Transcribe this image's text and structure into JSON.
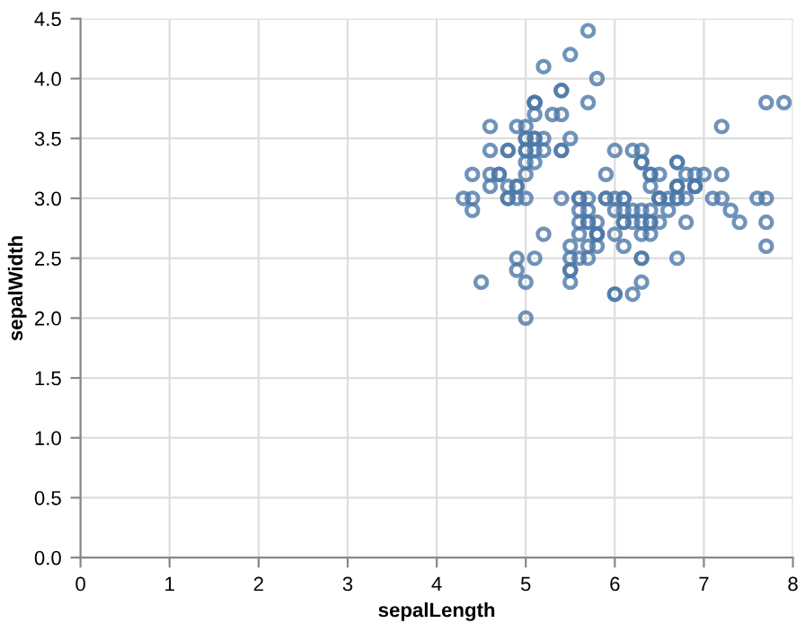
{
  "chart_data": {
    "type": "scatter",
    "xlabel": "sepalLength",
    "ylabel": "sepalWidth",
    "marker": "circle",
    "grid": true,
    "xlim": [
      0,
      8
    ],
    "xticks": [
      0,
      1,
      2,
      3,
      4,
      5,
      6,
      7,
      8
    ],
    "ylim": [
      0,
      4.5
    ],
    "yticks": [
      {
        "value": 0,
        "label": "0.0"
      },
      {
        "value": 0.5,
        "label": "0.5"
      },
      {
        "value": 1,
        "label": "1.0"
      },
      {
        "value": 1.5,
        "label": "1.5"
      },
      {
        "value": 2,
        "label": "2.0"
      },
      {
        "value": 2.5,
        "label": "2.5"
      },
      {
        "value": 3,
        "label": "3.0"
      },
      {
        "value": 3.5,
        "label": "3.5"
      },
      {
        "value": 4,
        "label": "4.0"
      },
      {
        "value": 4.5,
        "label": "4.5"
      }
    ],
    "series": [
      {
        "color": "#4c78a8",
        "x": [
          5.1,
          4.9,
          4.7,
          4.6,
          5.0,
          5.4,
          4.6,
          5.0,
          4.4,
          4.9,
          5.4,
          4.8,
          4.8,
          4.3,
          5.8,
          5.7,
          5.4,
          5.1,
          5.7,
          5.1,
          5.4,
          5.1,
          4.6,
          5.1,
          4.8,
          5.0,
          5.0,
          5.2,
          5.2,
          4.7,
          4.8,
          5.4,
          5.2,
          5.5,
          4.9,
          5.0,
          5.5,
          4.9,
          4.4,
          5.1,
          5.0,
          4.5,
          4.4,
          5.0,
          5.1,
          4.8,
          5.1,
          4.6,
          5.3,
          5.0,
          7.0,
          6.4,
          6.9,
          5.5,
          6.5,
          5.7,
          6.3,
          4.9,
          6.6,
          5.2,
          5.0,
          5.9,
          6.0,
          6.1,
          5.6,
          6.7,
          5.6,
          5.8,
          6.2,
          5.6,
          5.9,
          6.1,
          6.3,
          6.1,
          6.4,
          6.6,
          6.8,
          6.7,
          6.0,
          5.7,
          5.5,
          5.5,
          5.8,
          6.0,
          5.4,
          6.0,
          6.7,
          6.3,
          5.6,
          5.5,
          5.5,
          6.1,
          5.8,
          5.0,
          5.6,
          5.7,
          5.7,
          6.2,
          5.1,
          5.7,
          6.3,
          5.8,
          7.1,
          6.3,
          6.5,
          7.6,
          4.9,
          7.3,
          6.7,
          7.2,
          6.5,
          6.4,
          6.8,
          5.7,
          5.8,
          6.4,
          6.5,
          7.7,
          7.7,
          6.0,
          6.9,
          5.6,
          7.7,
          6.3,
          6.7,
          7.2,
          6.2,
          6.1,
          6.4,
          7.2,
          7.4,
          7.9,
          6.4,
          6.3,
          6.1,
          7.7,
          6.3,
          6.4,
          6.0,
          6.9,
          6.7,
          6.9,
          5.8,
          6.8,
          6.7,
          6.7,
          6.3,
          6.5,
          6.2,
          5.9
        ],
        "values": [
          3.5,
          3.0,
          3.2,
          3.1,
          3.6,
          3.9,
          3.4,
          3.4,
          2.9,
          3.1,
          3.7,
          3.4,
          3.0,
          3.0,
          4.0,
          4.4,
          3.9,
          3.5,
          3.8,
          3.8,
          3.4,
          3.7,
          3.6,
          3.3,
          3.4,
          3.0,
          3.4,
          3.5,
          3.4,
          3.2,
          3.1,
          3.4,
          4.1,
          4.2,
          3.1,
          3.2,
          3.5,
          3.6,
          3.0,
          3.4,
          3.5,
          2.3,
          3.2,
          3.5,
          3.8,
          3.0,
          3.8,
          3.2,
          3.7,
          3.3,
          3.2,
          3.2,
          3.1,
          2.3,
          2.8,
          2.8,
          3.3,
          2.4,
          2.9,
          2.7,
          2.0,
          3.0,
          2.2,
          2.9,
          2.9,
          3.1,
          3.0,
          2.7,
          2.2,
          2.5,
          3.2,
          2.8,
          2.5,
          2.8,
          2.9,
          3.0,
          2.8,
          3.0,
          2.9,
          2.6,
          2.4,
          2.4,
          2.7,
          2.7,
          3.0,
          3.4,
          3.1,
          2.3,
          3.0,
          2.5,
          2.6,
          3.0,
          2.6,
          2.3,
          2.7,
          3.0,
          2.9,
          2.9,
          2.5,
          2.8,
          3.3,
          2.7,
          3.0,
          2.9,
          3.0,
          3.0,
          2.5,
          2.9,
          2.5,
          3.6,
          3.2,
          2.7,
          3.0,
          2.5,
          2.8,
          3.2,
          3.0,
          3.8,
          2.6,
          2.2,
          3.2,
          2.8,
          2.8,
          2.7,
          3.3,
          3.2,
          2.8,
          3.0,
          2.8,
          3.0,
          2.8,
          3.8,
          2.8,
          2.8,
          2.6,
          3.0,
          3.4,
          3.1,
          3.0,
          3.1,
          3.1,
          3.1,
          2.7,
          3.2,
          3.3,
          3.0,
          2.5,
          3.0,
          3.4,
          3.0
        ]
      }
    ]
  }
}
